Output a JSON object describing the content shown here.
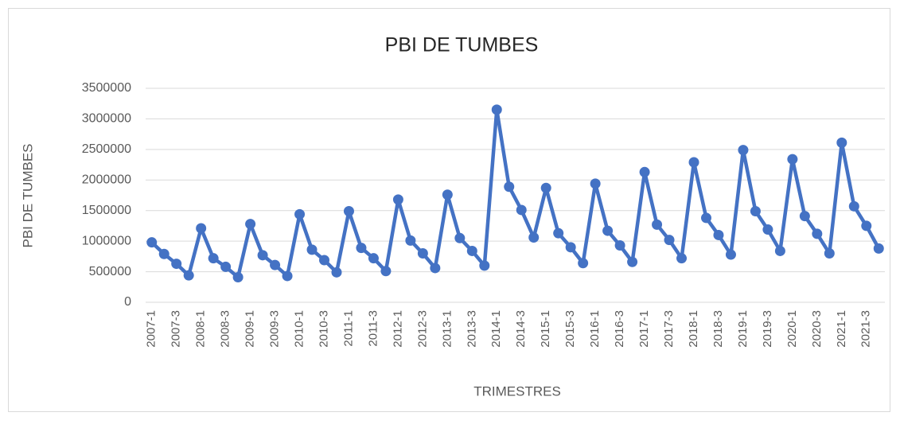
{
  "chart_data": {
    "type": "line",
    "title": "PBI DE TUMBES",
    "y_label": "PBI DE TUMBES",
    "x_label": "TRIMESTRES",
    "categories": [
      "2007-1",
      null,
      "2007-3",
      null,
      "2008-1",
      null,
      "2008-3",
      null,
      "2009-1",
      null,
      "2009-3",
      null,
      "2010-1",
      null,
      "2010-3",
      null,
      "2011-1",
      null,
      "2011-3",
      null,
      "2012-1",
      null,
      "2012-3",
      null,
      "2013-1",
      null,
      "2013-3",
      null,
      "2014-1",
      null,
      "2014-3",
      null,
      "2015-1",
      null,
      "2015-3",
      null,
      "2016-1",
      null,
      "2016-3",
      null,
      "2017-1",
      null,
      "2017-3",
      null,
      "2018-1",
      null,
      "2018-3",
      null,
      "2019-1",
      null,
      "2019-3",
      null,
      "2020-1",
      null,
      "2020-3",
      null,
      "2021-1",
      null,
      "2021-3",
      null
    ],
    "values": [
      980000,
      790000,
      630000,
      440000,
      1210000,
      720000,
      580000,
      410000,
      1280000,
      770000,
      610000,
      430000,
      1440000,
      860000,
      690000,
      490000,
      1490000,
      890000,
      720000,
      510000,
      1680000,
      1010000,
      800000,
      560000,
      1760000,
      1050000,
      840000,
      600000,
      3150000,
      1890000,
      1510000,
      1060000,
      1870000,
      1130000,
      900000,
      640000,
      1940000,
      1170000,
      930000,
      660000,
      2130000,
      1270000,
      1020000,
      720000,
      2290000,
      1380000,
      1100000,
      780000,
      2490000,
      1490000,
      1190000,
      840000,
      2340000,
      1410000,
      1120000,
      800000,
      2610000,
      1570000,
      1250000,
      880000
    ],
    "color": "#4472c4",
    "ylim": [
      0,
      3500000
    ],
    "yticks": [
      0,
      500000,
      1000000,
      1500000,
      2000000,
      2500000,
      3000000,
      3500000
    ],
    "grid": true
  }
}
